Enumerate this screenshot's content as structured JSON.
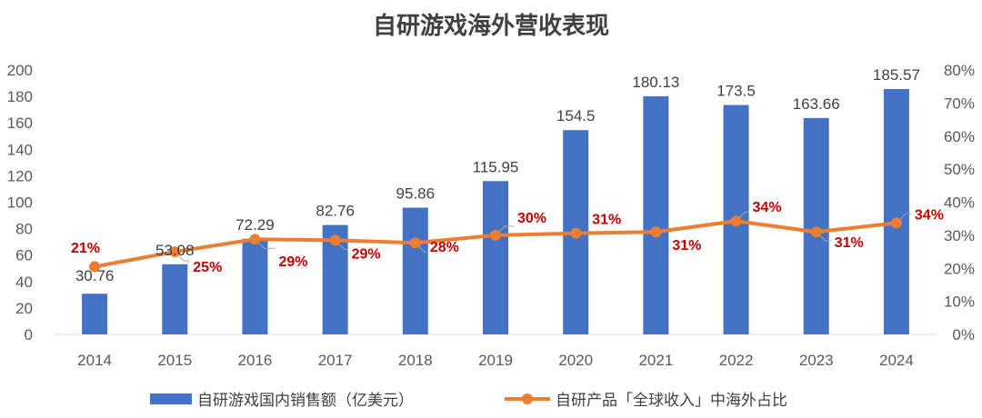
{
  "chart_data": {
    "type": "bar",
    "title": "自研游戏海外营收表现",
    "categories": [
      "2014",
      "2015",
      "2016",
      "2017",
      "2018",
      "2019",
      "2020",
      "2021",
      "2022",
      "2023",
      "2024"
    ],
    "series": [
      {
        "name": "自研游戏国内销售额（亿美元）",
        "type": "bar",
        "axis": "left",
        "color": "#4472c4",
        "values": [
          30.76,
          53.08,
          72.29,
          82.76,
          95.86,
          115.95,
          154.5,
          180.13,
          173.5,
          163.66,
          185.57
        ],
        "labels": [
          "30.76",
          "53.08",
          "72.29",
          "82.76",
          "95.86",
          "115.95",
          "154.5",
          "180.13",
          "173.5",
          "163.66",
          "185.57"
        ]
      },
      {
        "name": "自研产品「全球收入」中海外占比",
        "type": "line",
        "axis": "right",
        "color": "#ed7d31",
        "values": [
          0.205,
          0.25,
          0.288,
          0.285,
          0.277,
          0.3,
          0.306,
          0.31,
          0.343,
          0.31,
          0.337
        ],
        "labels": [
          "21%",
          "25%",
          "29%",
          "29%",
          "28%",
          "30%",
          "31%",
          "31%",
          "34%",
          "31%",
          "34%"
        ],
        "label_color": "#c00000"
      }
    ],
    "y_left": {
      "min": 0,
      "max": 200,
      "ticks": [
        "0",
        "20",
        "40",
        "60",
        "80",
        "100",
        "120",
        "140",
        "160",
        "180",
        "200"
      ]
    },
    "y_right": {
      "min": 0,
      "max": 0.8,
      "ticks": [
        "0%",
        "10%",
        "20%",
        "30%",
        "40%",
        "50%",
        "60%",
        "70%",
        "80%"
      ]
    },
    "grid": false,
    "legend_position": "bottom"
  }
}
